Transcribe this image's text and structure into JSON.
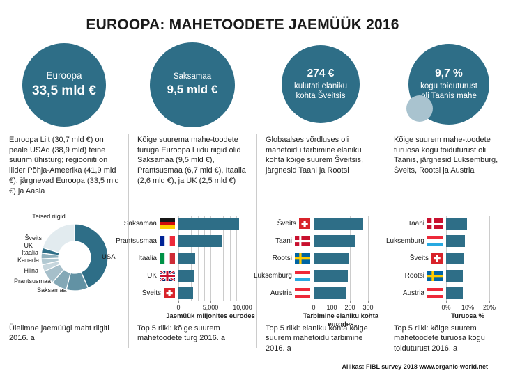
{
  "title": "EUROOPA: MAHETOODETE JAEMÜÜK 2016",
  "footer": "Allikas: FiBL survey 2018  www.organic-world.net",
  "colors": {
    "teal": "#2e6e87",
    "decorative_bubble": "#a9c3cf",
    "grid": "#cccccc",
    "divider": "#cccccc"
  },
  "columns": [
    {
      "circle_lines": [
        {
          "text": "Euroopa",
          "style": "small"
        },
        {
          "text": "33,5 mld €",
          "style": "big"
        }
      ],
      "blurb": "Euroopa Liit (30,7 mld €) on peale USAd (38,9 mld) teine suurim ühisturg; regiooniti on liider Põhja-Ameerika (41,9 mld €), järgnevad Euroopa (33,5 mld €) ja Aasia",
      "caption": "Üleilmne jaemüügi maht riigiti 2016. a"
    },
    {
      "circle_lines": [
        {
          "text": "Saksamaa",
          "style": "small"
        },
        {
          "text": "9,5 mld €",
          "style": "big"
        }
      ],
      "blurb": "Kõige suurema mahe-toodete turuga Euroopa Liidu riigid olid Saksamaa (9,5 mld €), Prantsusmaa (6,7 mld €), Itaalia (2,6 mld €), ja UK (2,5 mld €)",
      "caption": "Top 5 riiki: kõige suurem mahetoodete turg 2016. a"
    },
    {
      "circle_lines": [
        {
          "text": "274 €",
          "style": "big"
        },
        {
          "text": "kulutati elaniku kohta Šveitsis",
          "style": "small"
        }
      ],
      "blurb": "Globaalses võrdluses oli mahetoidu tarbimine elaniku kohta kõige suurem Šveitsis, järgnesid Taani ja Rootsi",
      "caption": "Top 5 riiki: elaniku kohta kõige suurem mahetoidu tarbimine 2016. a"
    },
    {
      "circle_lines": [
        {
          "text": "9,7 %",
          "style": "big"
        },
        {
          "text": "kogu toiduturust oli Taanis mahe",
          "style": "small"
        }
      ],
      "blurb": "Kõige suurem mahe-toodete turuosa kogu toiduturust oli Taanis, järgnesid Luksemburg, Šveits, Rootsi ja Austria",
      "caption": "Top 5 riiki: kõige suurem mahetoodete turuosa kogu toiduturust 2016. a"
    }
  ],
  "chart_data": [
    {
      "type": "pie",
      "variant": "donut",
      "title": "Üleilmne jaemüügi maht riigiti 2016. a",
      "labels": [
        "USA",
        "Saksamaa",
        "Prantsusmaa",
        "Hiina",
        "Kanada",
        "Itaalia",
        "UK",
        "Šveits",
        "Teised riigid"
      ],
      "values_percent_share": [
        43.4,
        10.6,
        7.5,
        6.6,
        3.3,
        2.9,
        2.8,
        2.6,
        20.3
      ],
      "colors": [
        "#2e6e87",
        "#6292a4",
        "#84a8b6",
        "#a6bfca",
        "#c6d6dd",
        "#b2c9d2",
        "#8fb0bd",
        "#2e6e87",
        "#e2ebef"
      ],
      "legend_position": "around-slices"
    },
    {
      "type": "bar",
      "orientation": "horizontal",
      "title": "Top 5 riiki: kõige suurem mahetoodete turg 2016. a",
      "categories": [
        "Saksamaa",
        "Prantsusmaa",
        "Itaalia",
        "UK",
        "Šveits"
      ],
      "flags": [
        "de",
        "fr",
        "it",
        "uk",
        "ch"
      ],
      "values": [
        9500,
        6700,
        2600,
        2500,
        2300
      ],
      "xlabel": "Jaemüük miljonites eurodes",
      "xlim": [
        0,
        10000
      ],
      "ticks": [
        0,
        5000,
        10000
      ],
      "tick_labels": [
        "0",
        "5,000",
        "10,000"
      ],
      "grid_step": 1000,
      "grid": true,
      "bar_color": "#2e6e87"
    },
    {
      "type": "bar",
      "orientation": "horizontal",
      "title": "Top 5 riiki: elaniku kohta kõige suurem mahetoidu tarbimine 2016. a",
      "categories": [
        "Šveits",
        "Taani",
        "Rootsi",
        "Luksemburg",
        "Austria"
      ],
      "flags": [
        "ch",
        "dk",
        "se",
        "lu",
        "at"
      ],
      "values": [
        274,
        227,
        197,
        188,
        177
      ],
      "xlabel": "Tarbimine elaniku kohta eurodes",
      "xlim": [
        0,
        300
      ],
      "ticks": [
        0,
        100,
        200,
        300
      ],
      "tick_labels": [
        "0",
        "100",
        "200",
        "300"
      ],
      "grid_step": 100,
      "grid": true,
      "bar_color": "#2e6e87"
    },
    {
      "type": "bar",
      "orientation": "horizontal",
      "title": "Top 5 riiki: kõige suurem mahetoodete turuosa kogu toiduturust 2016. a",
      "categories": [
        "Taani",
        "Luksemburg",
        "Šveits",
        "Rootsi",
        "Austria"
      ],
      "flags": [
        "dk",
        "lu",
        "ch",
        "se",
        "at"
      ],
      "values": [
        9.7,
        8.6,
        8.4,
        7.9,
        7.9
      ],
      "xlabel": "Turuosa %",
      "xlim": [
        0,
        20
      ],
      "ticks": [
        0,
        10,
        20
      ],
      "tick_labels": [
        "0%",
        "10%",
        "20%"
      ],
      "grid_step": 10,
      "grid": true,
      "bar_color": "#2e6e87"
    }
  ]
}
